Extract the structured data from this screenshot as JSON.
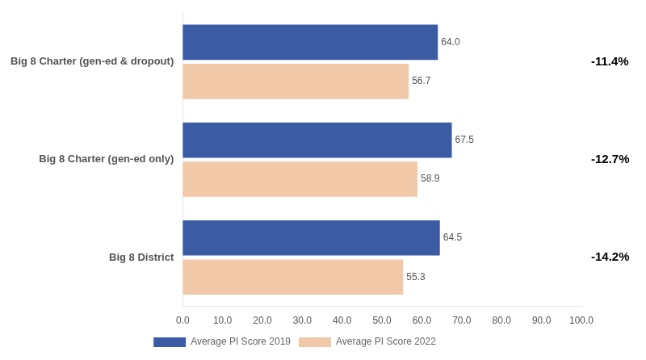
{
  "chart_data": {
    "type": "bar",
    "orientation": "horizontal",
    "categories": [
      "Big 8 Charter (gen-ed & dropout)",
      "Big 8 Charter (gen-ed only)",
      "Big 8 District"
    ],
    "series": [
      {
        "name": "Average PI Score 2019",
        "color": "#3B5BA5",
        "values": [
          64.0,
          67.5,
          64.5
        ],
        "value_labels": [
          "64.0",
          "67.5",
          "64.5"
        ]
      },
      {
        "name": "Average PI Score 2022",
        "color": "#F2C9A8",
        "values": [
          56.7,
          58.9,
          55.3
        ],
        "value_labels": [
          "56.7",
          "58.9",
          "55.3"
        ]
      }
    ],
    "xlim": [
      0,
      100
    ],
    "xticks": [
      {
        "value": 0,
        "label": "0.0"
      },
      {
        "value": 10,
        "label": "10.0"
      },
      {
        "value": 20,
        "label": "20.0"
      },
      {
        "value": 30,
        "label": "30.0"
      },
      {
        "value": 40,
        "label": "40.0"
      },
      {
        "value": 50,
        "label": "50.0"
      },
      {
        "value": 60,
        "label": "60.0"
      },
      {
        "value": 70,
        "label": "70.0"
      },
      {
        "value": 80,
        "label": "80.0"
      },
      {
        "value": 90,
        "label": "90.0"
      },
      {
        "value": 100,
        "label": "100.0"
      }
    ],
    "data_labels": true,
    "annotations": [
      {
        "category": "Big 8 Charter (gen-ed & dropout)",
        "text": "-11.4%"
      },
      {
        "category": "Big 8 Charter (gen-ed only)",
        "text": "-12.7%"
      },
      {
        "category": "Big 8 District",
        "text": "-14.2%"
      }
    ],
    "legend": "bottom",
    "grid": false
  }
}
